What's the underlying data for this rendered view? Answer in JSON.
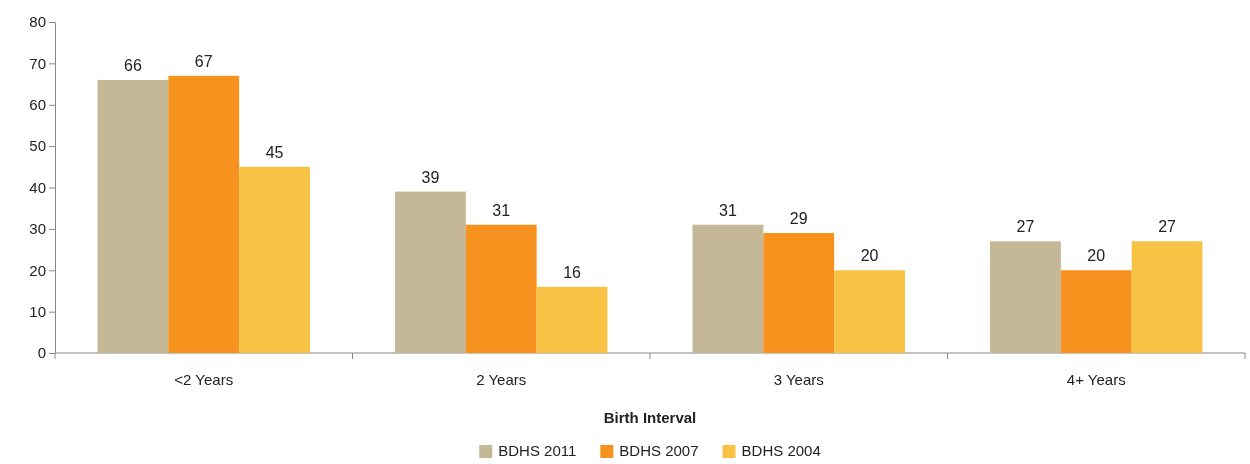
{
  "chart_data": {
    "type": "bar",
    "xlabel": "Birth Interval",
    "categories": [
      "<2 Years",
      "2 Years",
      "3 Years",
      "4+ Years"
    ],
    "series": [
      {
        "name": "BDHS 2011",
        "color": "#c4b896",
        "values": [
          66,
          39,
          31,
          27
        ]
      },
      {
        "name": "BDHS 2007",
        "color": "#f7921e",
        "values": [
          67,
          31,
          29,
          20
        ]
      },
      {
        "name": "BDHS 2004",
        "color": "#f8c244",
        "values": [
          45,
          16,
          20,
          27
        ]
      }
    ],
    "ylim": [
      0,
      80
    ],
    "yticks": [
      0,
      10,
      20,
      30,
      40,
      50,
      60,
      70,
      80
    ],
    "grid": false,
    "legend": "bottom",
    "data_labels": true
  }
}
